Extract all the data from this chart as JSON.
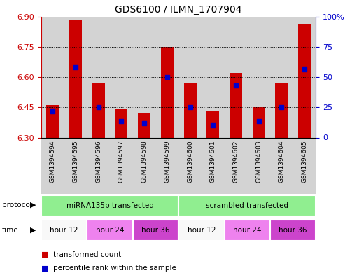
{
  "title": "GDS6100 / ILMN_1707904",
  "samples": [
    "GSM1394594",
    "GSM1394595",
    "GSM1394596",
    "GSM1394597",
    "GSM1394598",
    "GSM1394599",
    "GSM1394600",
    "GSM1394601",
    "GSM1394602",
    "GSM1394603",
    "GSM1394604",
    "GSM1394605"
  ],
  "bar_bottom": 6.3,
  "bar_tops": [
    6.46,
    6.88,
    6.57,
    6.44,
    6.42,
    6.75,
    6.57,
    6.43,
    6.62,
    6.45,
    6.57,
    6.86
  ],
  "blue_positions": [
    6.43,
    6.65,
    6.45,
    6.38,
    6.37,
    6.6,
    6.45,
    6.36,
    6.56,
    6.38,
    6.45,
    6.64
  ],
  "ylim_left": [
    6.3,
    6.9
  ],
  "yticks_left": [
    6.3,
    6.45,
    6.6,
    6.75,
    6.9
  ],
  "yticks_right": [
    0,
    25,
    50,
    75,
    100
  ],
  "protocol_groups": [
    {
      "label": "miRNA135b transfected",
      "start": 0,
      "end": 6,
      "color": "#90EE90"
    },
    {
      "label": "scrambled transfected",
      "start": 6,
      "end": 12,
      "color": "#90EE90"
    }
  ],
  "time_groups": [
    {
      "label": "hour 12",
      "start": 0,
      "end": 2,
      "color": "#f8f8f8"
    },
    {
      "label": "hour 24",
      "start": 2,
      "end": 4,
      "color": "#ee82ee"
    },
    {
      "label": "hour 36",
      "start": 4,
      "end": 6,
      "color": "#cc44cc"
    },
    {
      "label": "hour 12",
      "start": 6,
      "end": 8,
      "color": "#f8f8f8"
    },
    {
      "label": "hour 24",
      "start": 8,
      "end": 10,
      "color": "#ee82ee"
    },
    {
      "label": "hour 36",
      "start": 10,
      "end": 12,
      "color": "#cc44cc"
    }
  ],
  "bar_color": "#cc0000",
  "blue_color": "#0000cc",
  "grid_color": "#000000",
  "axis_color_left": "#cc0000",
  "axis_color_right": "#0000cc",
  "sample_area_color": "#d3d3d3",
  "legend_items": [
    {
      "label": "transformed count",
      "color": "#cc0000"
    },
    {
      "label": "percentile rank within the sample",
      "color": "#0000cc"
    }
  ],
  "bar_width": 0.55
}
